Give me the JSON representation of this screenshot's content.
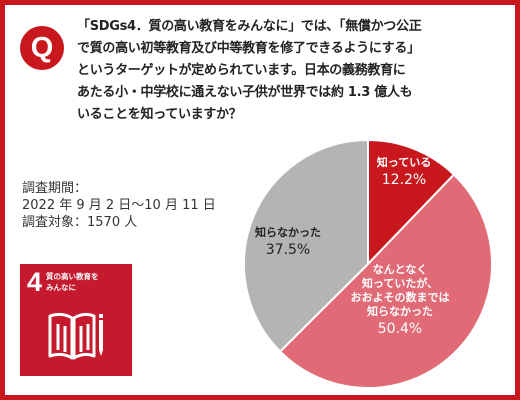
{
  "question": {
    "badge": "Q",
    "lines": [
      "「SDGs4．質の高い教育をみんなに」では、「無償かつ公正",
      "で質の高い初等教育及び中等教育を修了できるようにする」",
      "というターゲットが定められています。日本の義務教育に",
      "あたる小・中学校に通えない子供が世界では約 1.3 億人も",
      "いることを知っていますか？"
    ]
  },
  "survey": {
    "period_label": "調査期間：",
    "period": "2022 年 9 月 2 日〜10 月 11 日",
    "target": "調査対象：1570 人"
  },
  "sdg": {
    "number": "4",
    "title_lines": [
      "質の高い教育を",
      "みんなに"
    ],
    "icon": "book-and-pencil-icon",
    "color": "#c5192d"
  },
  "chart_data": {
    "type": "pie",
    "series": [
      {
        "label_lines": [
          "知っている"
        ],
        "value": 12.2,
        "value_label": "12.2%",
        "color": "#c9171e",
        "text_color": "#ffffff"
      },
      {
        "label_lines": [
          "なんとなく",
          "知っていたが、",
          "おおよその数までは",
          "知らなかった"
        ],
        "value": 50.4,
        "value_label": "50.4%",
        "color": "#e06a75",
        "text_color": "#ffffff"
      },
      {
        "label_lines": [
          "知らなかった"
        ],
        "value": 37.5,
        "value_label": "37.5%",
        "color": "#b4b4b4",
        "text_color": "#222222"
      }
    ]
  }
}
